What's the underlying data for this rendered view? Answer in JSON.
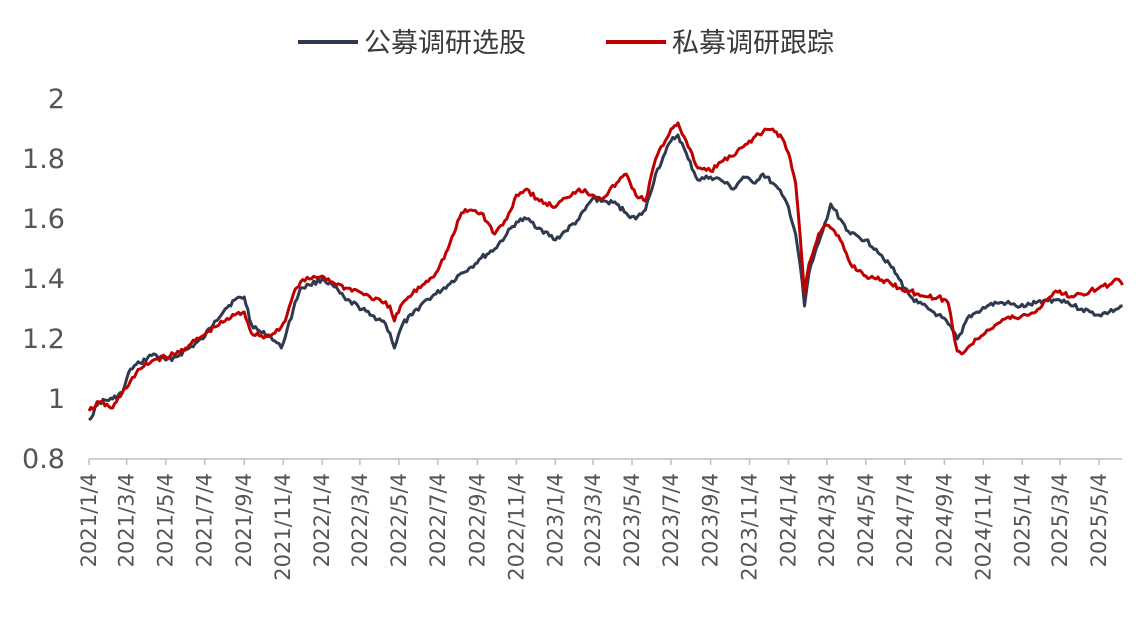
{
  "chart_data": {
    "type": "line",
    "title": "",
    "xlabel": "",
    "ylabel": "",
    "ylim": [
      0.8,
      2.0
    ],
    "yticks": [
      0.8,
      1,
      1.2,
      1.4,
      1.6,
      1.8,
      2
    ],
    "ytick_labels": [
      "0.8",
      "1",
      "1.2",
      "1.4",
      "1.6",
      "1.8",
      "2"
    ],
    "xticks": [
      "2021/1/4",
      "2021/3/4",
      "2021/5/4",
      "2021/7/4",
      "2021/9/4",
      "2021/11/4",
      "2022/1/4",
      "2022/3/4",
      "2022/5/4",
      "2022/7/4",
      "2022/9/4",
      "2022/11/4",
      "2023/1/4",
      "2023/3/4",
      "2023/5/4",
      "2023/7/4",
      "2023/9/4",
      "2023/11/4",
      "2024/1/4",
      "2024/3/4",
      "2024/5/4",
      "2024/7/4",
      "2024/9/4",
      "2024/11/4",
      "2025/1/4",
      "2025/3/4",
      "2025/5/4"
    ],
    "x_range": [
      "2021/1/4",
      "2025/6/10"
    ],
    "grid": false,
    "legend_position": "top-center",
    "series": [
      {
        "name": "公募调研选股",
        "color": "#2f3a4f",
        "points": [
          [
            "2021/1/4",
            0.93
          ],
          [
            "2021/1/20",
            0.99
          ],
          [
            "2021/2/10",
            1.0
          ],
          [
            "2021/2/25",
            1.02
          ],
          [
            "2021/3/10",
            1.1
          ],
          [
            "2021/3/25",
            1.12
          ],
          [
            "2021/4/15",
            1.15
          ],
          [
            "2021/5/4",
            1.13
          ],
          [
            "2021/5/20",
            1.14
          ],
          [
            "2021/6/10",
            1.17
          ],
          [
            "2021/7/1",
            1.2
          ],
          [
            "2021/7/20",
            1.26
          ],
          [
            "2021/8/5",
            1.3
          ],
          [
            "2021/8/20",
            1.33
          ],
          [
            "2021/9/4",
            1.34
          ],
          [
            "2021/9/15",
            1.25
          ],
          [
            "2021/10/1",
            1.22
          ],
          [
            "2021/10/15",
            1.21
          ],
          [
            "2021/11/1",
            1.17
          ],
          [
            "2021/11/10",
            1.23
          ],
          [
            "2021/11/20",
            1.3
          ],
          [
            "2021/12/1",
            1.37
          ],
          [
            "2021/12/15",
            1.38
          ],
          [
            "2022/1/4",
            1.4
          ],
          [
            "2022/1/20",
            1.38
          ],
          [
            "2022/2/10",
            1.33
          ],
          [
            "2022/3/1",
            1.31
          ],
          [
            "2022/3/20",
            1.28
          ],
          [
            "2022/4/10",
            1.26
          ],
          [
            "2022/4/20",
            1.22
          ],
          [
            "2022/4/27",
            1.17
          ],
          [
            "2022/5/10",
            1.25
          ],
          [
            "2022/5/25",
            1.28
          ],
          [
            "2022/6/10",
            1.32
          ],
          [
            "2022/7/1",
            1.35
          ],
          [
            "2022/7/20",
            1.38
          ],
          [
            "2022/8/10",
            1.42
          ],
          [
            "2022/8/25",
            1.44
          ],
          [
            "2022/9/10",
            1.47
          ],
          [
            "2022/10/1",
            1.5
          ],
          [
            "2022/10/20",
            1.55
          ],
          [
            "2022/11/4",
            1.59
          ],
          [
            "2022/11/20",
            1.6
          ],
          [
            "2022/12/10",
            1.57
          ],
          [
            "2023/1/4",
            1.53
          ],
          [
            "2023/1/20",
            1.56
          ],
          [
            "2023/2/10",
            1.6
          ],
          [
            "2023/3/4",
            1.67
          ],
          [
            "2023/3/20",
            1.66
          ],
          [
            "2023/4/10",
            1.65
          ],
          [
            "2023/4/25",
            1.62
          ],
          [
            "2023/5/10",
            1.6
          ],
          [
            "2023/5/25",
            1.63
          ],
          [
            "2023/6/10",
            1.75
          ],
          [
            "2023/6/25",
            1.82
          ],
          [
            "2023/7/4",
            1.86
          ],
          [
            "2023/7/15",
            1.88
          ],
          [
            "2023/7/31",
            1.8
          ],
          [
            "2023/8/15",
            1.73
          ],
          [
            "2023/9/4",
            1.74
          ],
          [
            "2023/9/20",
            1.73
          ],
          [
            "2023/10/10",
            1.7
          ],
          [
            "2023/10/25",
            1.74
          ],
          [
            "2023/11/10",
            1.72
          ],
          [
            "2023/11/25",
            1.75
          ],
          [
            "2023/12/10",
            1.72
          ],
          [
            "2023/12/25",
            1.68
          ],
          [
            "2024/1/4",
            1.64
          ],
          [
            "2024/1/15",
            1.55
          ],
          [
            "2024/1/22",
            1.45
          ],
          [
            "2024/1/29",
            1.31
          ],
          [
            "2024/2/5",
            1.42
          ],
          [
            "2024/2/20",
            1.52
          ],
          [
            "2024/3/4",
            1.6
          ],
          [
            "2024/3/10",
            1.65
          ],
          [
            "2024/3/25",
            1.6
          ],
          [
            "2024/4/10",
            1.55
          ],
          [
            "2024/5/4",
            1.53
          ],
          [
            "2024/5/20",
            1.5
          ],
          [
            "2024/6/10",
            1.45
          ],
          [
            "2024/6/25",
            1.4
          ],
          [
            "2024/7/10",
            1.35
          ],
          [
            "2024/7/25",
            1.32
          ],
          [
            "2024/8/10",
            1.3
          ],
          [
            "2024/8/25",
            1.28
          ],
          [
            "2024/9/10",
            1.25
          ],
          [
            "2024/9/24",
            1.2
          ],
          [
            "2024/10/1",
            1.22
          ],
          [
            "2024/10/10",
            1.27
          ],
          [
            "2024/10/25",
            1.29
          ],
          [
            "2024/11/10",
            1.31
          ],
          [
            "2024/11/25",
            1.32
          ],
          [
            "2024/12/10",
            1.32
          ],
          [
            "2024/12/25",
            1.31
          ],
          [
            "2025/1/10",
            1.31
          ],
          [
            "2025/1/25",
            1.32
          ],
          [
            "2025/2/10",
            1.33
          ],
          [
            "2025/2/25",
            1.33
          ],
          [
            "2025/3/10",
            1.33
          ],
          [
            "2025/3/25",
            1.31
          ],
          [
            "2025/4/7",
            1.3
          ],
          [
            "2025/4/20",
            1.29
          ],
          [
            "2025/5/4",
            1.28
          ],
          [
            "2025/5/20",
            1.29
          ],
          [
            "2025/6/1",
            1.3
          ],
          [
            "2025/6/10",
            1.31
          ]
        ]
      },
      {
        "name": "私募调研跟踪",
        "color": "#c00000",
        "points": [
          [
            "2021/1/4",
            0.96
          ],
          [
            "2021/1/20",
            0.99
          ],
          [
            "2021/2/10",
            0.97
          ],
          [
            "2021/2/25",
            1.02
          ],
          [
            "2021/3/10",
            1.06
          ],
          [
            "2021/3/25",
            1.1
          ],
          [
            "2021/4/15",
            1.13
          ],
          [
            "2021/5/4",
            1.14
          ],
          [
            "2021/5/20",
            1.15
          ],
          [
            "2021/6/10",
            1.18
          ],
          [
            "2021/7/1",
            1.21
          ],
          [
            "2021/7/20",
            1.24
          ],
          [
            "2021/8/5",
            1.26
          ],
          [
            "2021/8/20",
            1.28
          ],
          [
            "2021/9/4",
            1.29
          ],
          [
            "2021/9/15",
            1.22
          ],
          [
            "2021/10/1",
            1.21
          ],
          [
            "2021/10/15",
            1.21
          ],
          [
            "2021/11/1",
            1.24
          ],
          [
            "2021/11/10",
            1.28
          ],
          [
            "2021/11/20",
            1.35
          ],
          [
            "2021/12/1",
            1.39
          ],
          [
            "2021/12/15",
            1.4
          ],
          [
            "2022/1/4",
            1.41
          ],
          [
            "2022/1/20",
            1.39
          ],
          [
            "2022/2/10",
            1.37
          ],
          [
            "2022/3/1",
            1.36
          ],
          [
            "2022/3/20",
            1.34
          ],
          [
            "2022/4/10",
            1.32
          ],
          [
            "2022/4/20",
            1.31
          ],
          [
            "2022/4/27",
            1.26
          ],
          [
            "2022/5/10",
            1.32
          ],
          [
            "2022/5/25",
            1.35
          ],
          [
            "2022/6/10",
            1.38
          ],
          [
            "2022/7/1",
            1.42
          ],
          [
            "2022/7/20",
            1.5
          ],
          [
            "2022/8/10",
            1.62
          ],
          [
            "2022/8/25",
            1.63
          ],
          [
            "2022/9/10",
            1.62
          ],
          [
            "2022/10/1",
            1.55
          ],
          [
            "2022/10/20",
            1.6
          ],
          [
            "2022/11/4",
            1.68
          ],
          [
            "2022/11/20",
            1.7
          ],
          [
            "2022/12/10",
            1.66
          ],
          [
            "2023/1/4",
            1.64
          ],
          [
            "2023/1/20",
            1.67
          ],
          [
            "2023/2/10",
            1.7
          ],
          [
            "2023/3/4",
            1.68
          ],
          [
            "2023/3/20",
            1.67
          ],
          [
            "2023/4/10",
            1.72
          ],
          [
            "2023/4/25",
            1.75
          ],
          [
            "2023/5/10",
            1.68
          ],
          [
            "2023/5/25",
            1.66
          ],
          [
            "2023/6/10",
            1.8
          ],
          [
            "2023/6/25",
            1.86
          ],
          [
            "2023/7/4",
            1.9
          ],
          [
            "2023/7/15",
            1.92
          ],
          [
            "2023/7/31",
            1.84
          ],
          [
            "2023/8/15",
            1.77
          ],
          [
            "2023/9/4",
            1.76
          ],
          [
            "2023/9/20",
            1.79
          ],
          [
            "2023/10/10",
            1.81
          ],
          [
            "2023/10/25",
            1.84
          ],
          [
            "2023/11/10",
            1.87
          ],
          [
            "2023/11/25",
            1.89
          ],
          [
            "2023/12/10",
            1.9
          ],
          [
            "2023/12/25",
            1.87
          ],
          [
            "2024/1/4",
            1.82
          ],
          [
            "2024/1/15",
            1.72
          ],
          [
            "2024/1/22",
            1.55
          ],
          [
            "2024/1/29",
            1.35
          ],
          [
            "2024/2/5",
            1.45
          ],
          [
            "2024/2/20",
            1.55
          ],
          [
            "2024/3/4",
            1.58
          ],
          [
            "2024/3/10",
            1.57
          ],
          [
            "2024/3/25",
            1.53
          ],
          [
            "2024/4/10",
            1.45
          ],
          [
            "2024/5/4",
            1.41
          ],
          [
            "2024/5/20",
            1.4
          ],
          [
            "2024/6/10",
            1.39
          ],
          [
            "2024/6/25",
            1.37
          ],
          [
            "2024/7/10",
            1.36
          ],
          [
            "2024/7/25",
            1.35
          ],
          [
            "2024/8/10",
            1.34
          ],
          [
            "2024/8/25",
            1.34
          ],
          [
            "2024/9/10",
            1.32
          ],
          [
            "2024/9/24",
            1.16
          ],
          [
            "2024/10/1",
            1.15
          ],
          [
            "2024/10/10",
            1.17
          ],
          [
            "2024/10/25",
            1.2
          ],
          [
            "2024/11/10",
            1.23
          ],
          [
            "2024/11/25",
            1.25
          ],
          [
            "2024/12/10",
            1.27
          ],
          [
            "2024/12/25",
            1.27
          ],
          [
            "2025/1/10",
            1.28
          ],
          [
            "2025/1/25",
            1.29
          ],
          [
            "2025/2/10",
            1.33
          ],
          [
            "2025/2/25",
            1.36
          ],
          [
            "2025/3/10",
            1.35
          ],
          [
            "2025/3/25",
            1.34
          ],
          [
            "2025/4/7",
            1.35
          ],
          [
            "2025/4/20",
            1.36
          ],
          [
            "2025/5/4",
            1.37
          ],
          [
            "2025/5/20",
            1.38
          ],
          [
            "2025/6/1",
            1.4
          ],
          [
            "2025/6/10",
            1.38
          ]
        ]
      }
    ]
  }
}
